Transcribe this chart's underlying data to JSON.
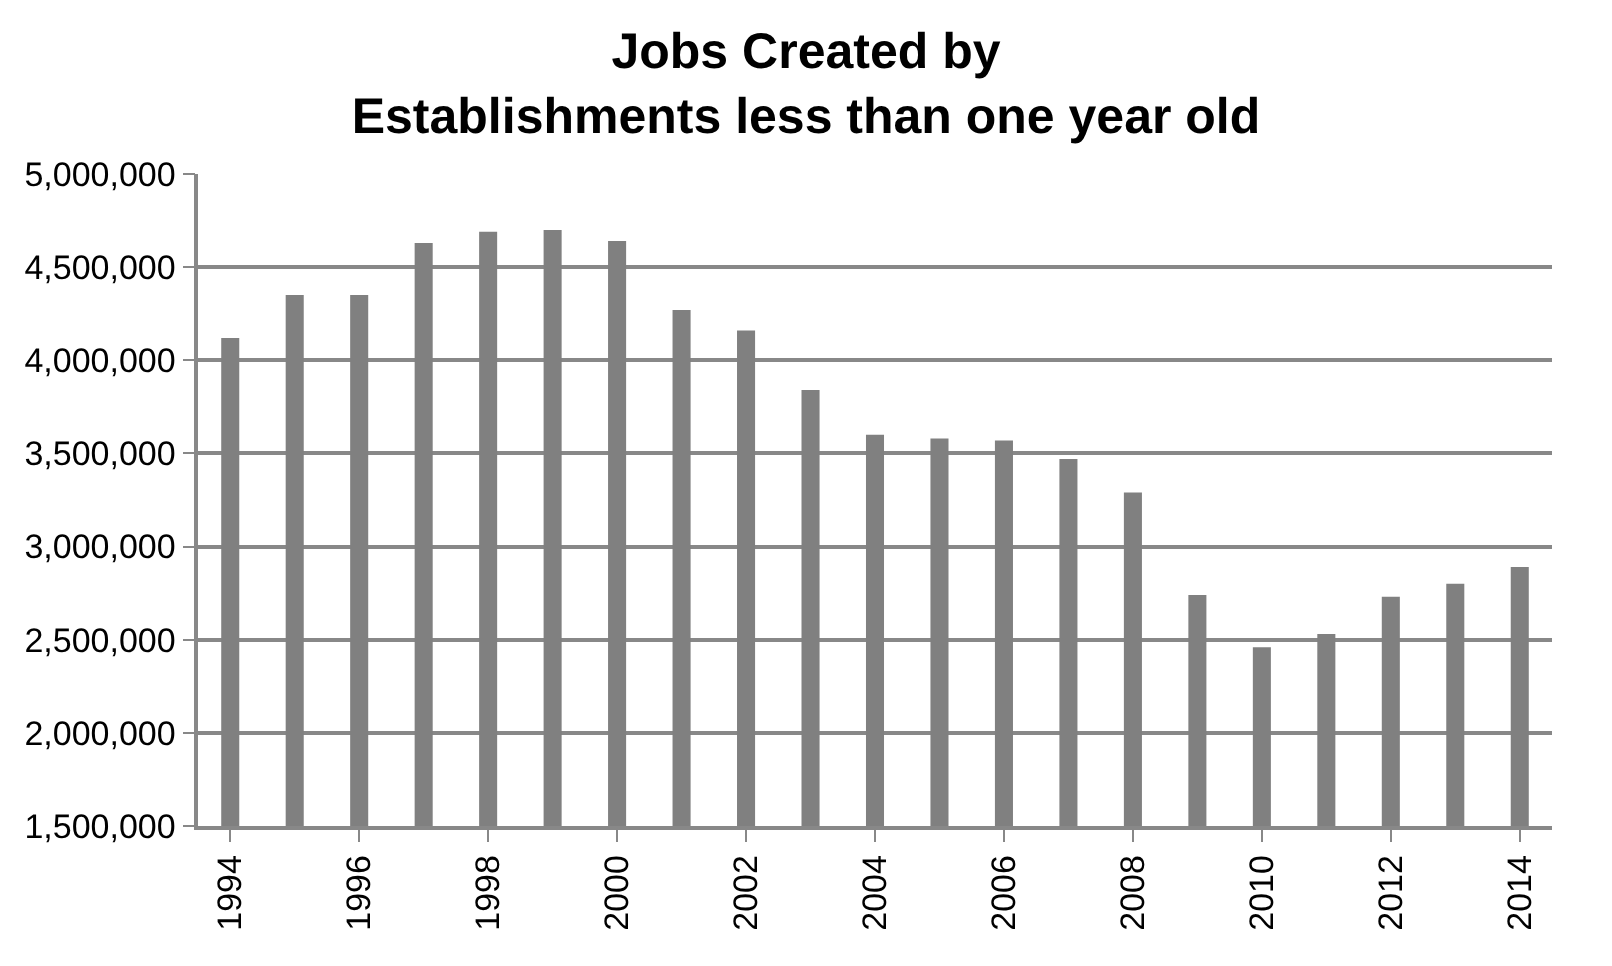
{
  "chart_data": {
    "type": "bar",
    "title": "Jobs Created by\nEstablishments less than one year old",
    "categories": [
      "1994",
      null,
      "1996",
      null,
      "1998",
      null,
      "2000",
      null,
      "2002",
      null,
      "2004",
      null,
      "2006",
      null,
      "2008",
      null,
      "2010",
      null,
      "2012",
      null,
      "2014"
    ],
    "values": [
      4120000,
      4350000,
      4350000,
      4630000,
      4690000,
      4700000,
      4640000,
      4270000,
      4160000,
      3840000,
      3600000,
      3580000,
      3570000,
      3470000,
      3290000,
      2740000,
      2460000,
      2530000,
      2730000,
      2800000,
      2890000
    ],
    "color": "#808080",
    "ylim": [
      1500000,
      5000000
    ],
    "yticks": [
      {
        "value": 1500000,
        "label": "1,500,000"
      },
      {
        "value": 2000000,
        "label": "2,000,000"
      },
      {
        "value": 2500000,
        "label": "2,500,000"
      },
      {
        "value": 3000000,
        "label": "3,000,000"
      },
      {
        "value": 3500000,
        "label": "3,500,000"
      },
      {
        "value": 4000000,
        "label": "4,000,000"
      },
      {
        "value": 4500000,
        "label": "4,500,000"
      },
      {
        "value": 5000000,
        "label": "5,000,000"
      }
    ],
    "grid": "y"
  }
}
